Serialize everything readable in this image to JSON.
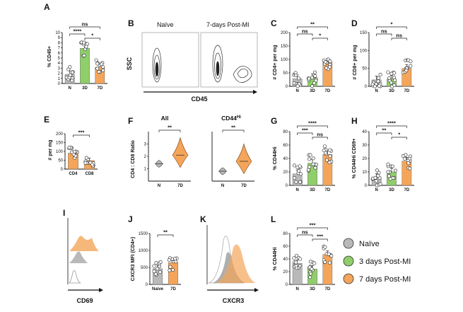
{
  "figure": {
    "colors": {
      "naive": "#b9b9b9",
      "d3": "#8fce6a",
      "d7": "#f4a55a",
      "axis": "#111111"
    },
    "legend": [
      {
        "label": "Naïve",
        "color": "#b9b9b9"
      },
      {
        "label": "3 days Post-MI",
        "color": "#8fce6a"
      },
      {
        "label": "7 days Post-MI",
        "color": "#f4a55a"
      }
    ],
    "panels": {
      "A": {
        "letter": "A"
      },
      "B": {
        "letter": "B",
        "col1": "Naïve",
        "col2": "7-days Post-MI",
        "ylabel": "SSC",
        "xlabel": "CD45"
      },
      "C": {
        "letter": "C"
      },
      "D": {
        "letter": "D"
      },
      "E": {
        "letter": "E"
      },
      "F": {
        "letter": "F",
        "title1": "All",
        "title2": "CD44",
        "title2sup": "Hi",
        "ylabel": "CD4 : CD8 Ratio"
      },
      "G": {
        "letter": "G"
      },
      "H": {
        "letter": "H"
      },
      "I": {
        "letter": "I",
        "xlabel": "CD69"
      },
      "J": {
        "letter": "J"
      },
      "K": {
        "letter": "K",
        "xlabel": "CXCR3"
      },
      "L": {
        "letter": "L"
      }
    }
  },
  "chart_data": [
    {
      "panel": "A",
      "type": "bar",
      "ylabel": "% CD45+",
      "categories": [
        "N",
        "3D",
        "7D"
      ],
      "values": [
        1.8,
        6.9,
        3.2
      ],
      "ylim": [
        0,
        10
      ],
      "yticks": [
        "0",
        "1",
        "2",
        "3",
        "4",
        "5",
        "6",
        "7",
        "8",
        "9",
        "10"
      ],
      "sig": [
        {
          "a": 0,
          "b": 2,
          "label": "ns"
        },
        {
          "a": 0,
          "b": 1,
          "label": "****"
        },
        {
          "a": 1,
          "b": 2,
          "label": "*"
        }
      ]
    },
    {
      "panel": "C",
      "type": "bar",
      "ylabel": "# CD4+ per mg",
      "categories": [
        "N",
        "3D",
        "7D"
      ],
      "values": [
        28,
        32,
        90
      ],
      "ylim": [
        0,
        200
      ],
      "yticks": [
        "0",
        "50",
        "100",
        "150",
        "200"
      ],
      "sig": [
        {
          "a": 0,
          "b": 2,
          "label": "**"
        },
        {
          "a": 0,
          "b": 1,
          "label": "ns"
        },
        {
          "a": 1,
          "b": 2,
          "label": "*"
        }
      ]
    },
    {
      "panel": "D",
      "type": "bar",
      "ylabel": "# CD8+ per mg",
      "categories": [
        "N",
        "3D",
        "7D"
      ],
      "values": [
        18,
        20,
        50
      ],
      "ylim": [
        0,
        150
      ],
      "yticks": [
        "0",
        "50",
        "100",
        "150"
      ],
      "sig": [
        {
          "a": 0,
          "b": 2,
          "label": "*"
        },
        {
          "a": 0,
          "b": 1,
          "label": "ns"
        },
        {
          "a": 1,
          "b": 2,
          "label": "ns"
        }
      ]
    },
    {
      "panel": "E",
      "type": "bar",
      "ylabel": "# per mg",
      "categories": [
        "CD4",
        "CD8"
      ],
      "values": [
        90,
        48
      ],
      "ylim": [
        0,
        200
      ],
      "yticks": [
        "0",
        "50",
        "100",
        "150",
        "200"
      ],
      "sig": [
        {
          "a": 0,
          "b": 1,
          "label": "***"
        }
      ]
    },
    {
      "panel": "G",
      "type": "bar",
      "ylabel": "% CD44Hi",
      "categories": [
        "N",
        "3D",
        "7D"
      ],
      "values": [
        17,
        33,
        46
      ],
      "ylim": [
        0,
        80
      ],
      "yticks": [
        "0",
        "20",
        "40",
        "60",
        "80"
      ],
      "sig": [
        {
          "a": 0,
          "b": 2,
          "label": "****"
        },
        {
          "a": 0,
          "b": 1,
          "label": "***"
        },
        {
          "a": 1,
          "b": 2,
          "label": "ns"
        }
      ]
    },
    {
      "panel": "H",
      "type": "bar",
      "ylabel": "% CD44Hi CD69+",
      "categories": [
        "N",
        "3D",
        "7D"
      ],
      "values": [
        6,
        10,
        18
      ],
      "ylim": [
        0,
        40
      ],
      "yticks": [
        "0",
        "10",
        "20",
        "30",
        "40"
      ],
      "sig": [
        {
          "a": 0,
          "b": 2,
          "label": "****"
        },
        {
          "a": 0,
          "b": 1,
          "label": "**"
        },
        {
          "a": 1,
          "b": 2,
          "label": "*"
        }
      ]
    },
    {
      "panel": "J",
      "type": "bar",
      "ylabel": "CXCR3 MFI (CD4+)",
      "categories": [
        "Naive",
        "7D"
      ],
      "values": [
        460,
        640
      ],
      "ylim": [
        0,
        1500
      ],
      "yticks": [
        "0",
        "500",
        "1000",
        "1500"
      ],
      "sig": [
        {
          "a": 0,
          "b": 1,
          "label": "**"
        }
      ]
    },
    {
      "panel": "L",
      "type": "bar",
      "ylabel": "% CD44Hi",
      "categories": [
        "N",
        "3D",
        "7D"
      ],
      "values": [
        33,
        24,
        47
      ],
      "ylim": [
        0,
        80
      ],
      "yticks": [
        "0",
        "20",
        "40",
        "60",
        "80"
      ],
      "sig": [
        {
          "a": 0,
          "b": 2,
          "label": "***"
        },
        {
          "a": 0,
          "b": 1,
          "label": "ns"
        },
        {
          "a": 1,
          "b": 2,
          "label": "***"
        }
      ]
    },
    {
      "panel": "F",
      "type": "violin",
      "ylabel": "CD4 : CD8 Ratio",
      "categories": [
        "N",
        "7D"
      ],
      "medians": [
        1.4,
        2.1
      ],
      "ylim": [
        0,
        4
      ],
      "yticks": [
        "1",
        "2",
        "3"
      ],
      "sig": [
        {
          "a": 0,
          "b": 1,
          "label": "**"
        }
      ]
    },
    {
      "panel": "F2",
      "type": "violin",
      "categories": [
        "N",
        "7D"
      ],
      "medians": [
        0.8,
        1.6
      ],
      "ylim": [
        0,
        4
      ],
      "sig": [
        {
          "a": 0,
          "b": 1,
          "label": "**"
        }
      ]
    }
  ]
}
